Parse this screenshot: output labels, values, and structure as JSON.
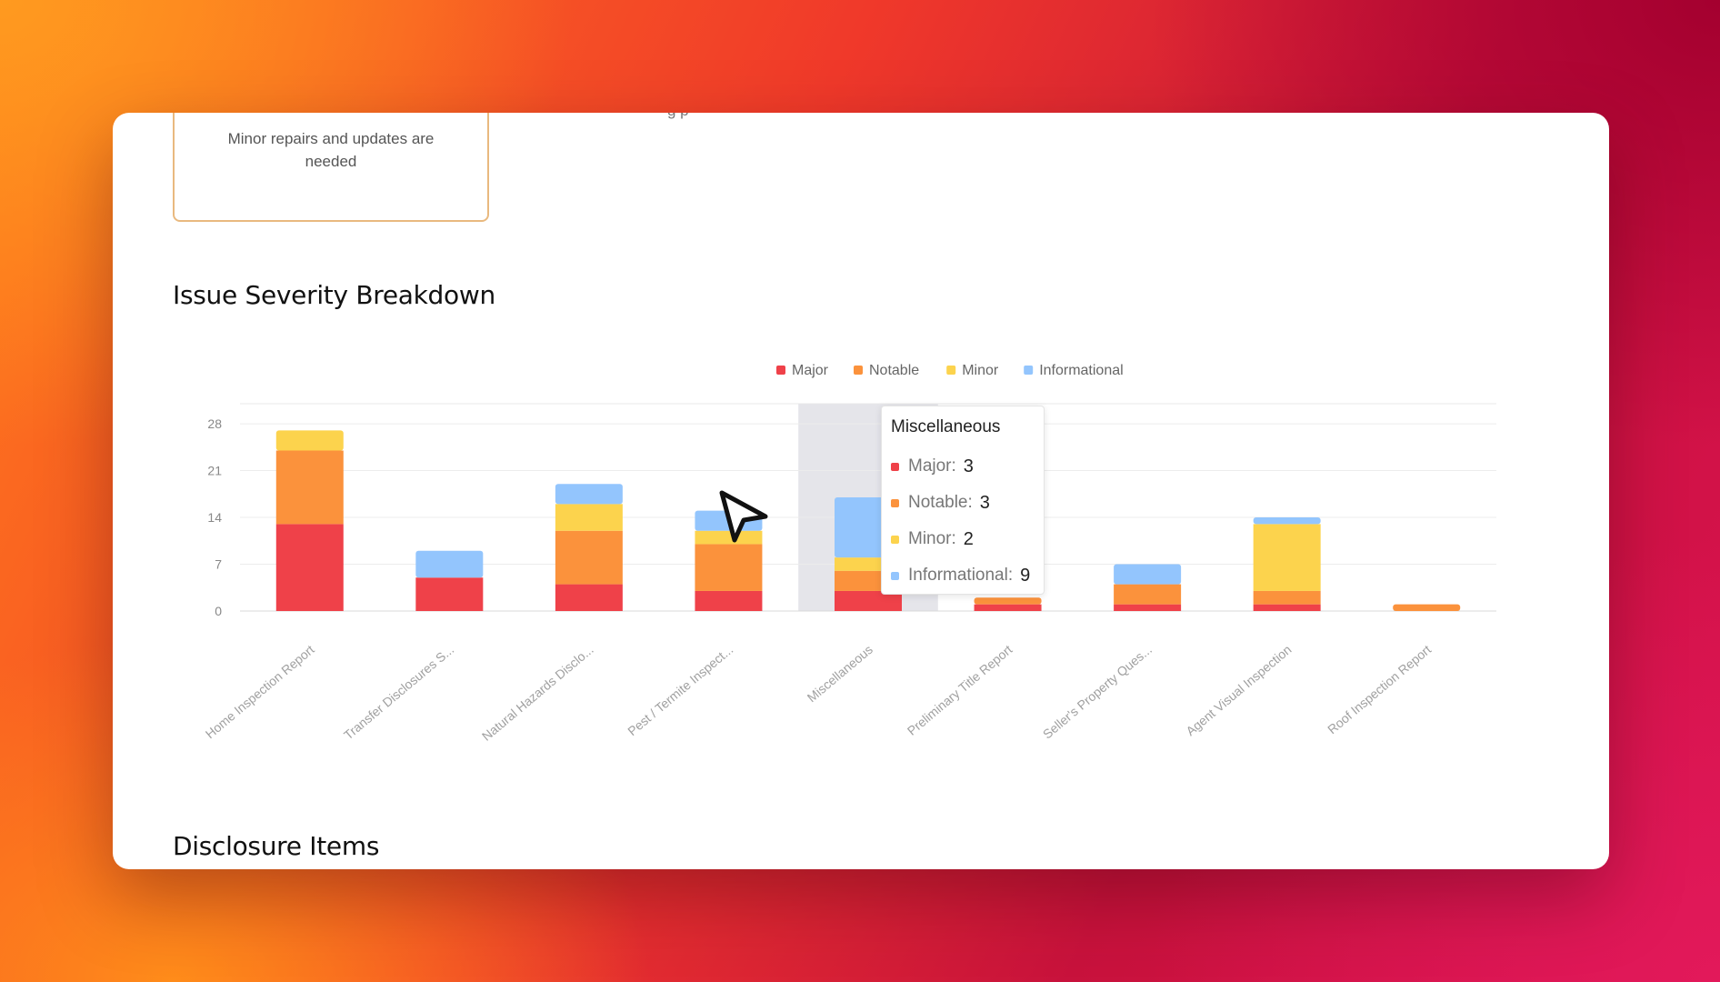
{
  "summary_card": {
    "text": "Minor repairs and updates are needed"
  },
  "clipped_text": "g p",
  "chart_section": {
    "title": "Issue Severity Breakdown"
  },
  "disclosure_section": {
    "title": "Disclosure Items"
  },
  "colors": {
    "major": "#ef4149",
    "notable": "#fb923c",
    "minor": "#fcd34d",
    "informational": "#93c5fd"
  },
  "chart_data": {
    "type": "bar",
    "stacked": true,
    "categories": [
      "Home Inspection Report",
      "Transfer Disclosures S...",
      "Natural Hazards Disclo...",
      "Pest / Termite Inspect...",
      "Miscellaneous",
      "Preliminary Title Report",
      "Seller's Property Ques...",
      "Agent Visual Inspection",
      "Roof Inspection Report"
    ],
    "series": [
      {
        "name": "Major",
        "color": "#ef4149",
        "values": [
          13,
          5,
          4,
          3,
          3,
          1,
          1,
          1,
          0
        ]
      },
      {
        "name": "Notable",
        "color": "#fb923c",
        "values": [
          11,
          0,
          8,
          7,
          3,
          1,
          3,
          2,
          1
        ]
      },
      {
        "name": "Minor",
        "color": "#fcd34d",
        "values": [
          3,
          0,
          4,
          2,
          2,
          0,
          0,
          10,
          0
        ]
      },
      {
        "name": "Informational",
        "color": "#93c5fd",
        "values": [
          0,
          4,
          3,
          3,
          9,
          0,
          3,
          1,
          0
        ]
      }
    ],
    "yticks": [
      0,
      7,
      14,
      21,
      28
    ],
    "ylim": [
      0,
      31
    ],
    "grid": true,
    "legend_position": "top-center",
    "highlighted_category": "Miscellaneous"
  },
  "tooltip": {
    "title": "Miscellaneous",
    "rows": [
      {
        "label": "Major:",
        "value": "3"
      },
      {
        "label": "Notable:",
        "value": "3"
      },
      {
        "label": "Minor:",
        "value": "2"
      },
      {
        "label": "Informational:",
        "value": "9"
      }
    ]
  }
}
